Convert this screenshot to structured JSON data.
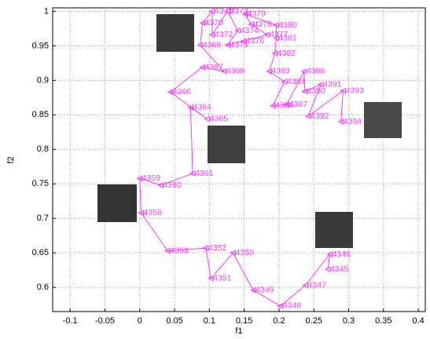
{
  "chart_data": {
    "type": "line",
    "x_label": "f1",
    "y_label": "f2",
    "color": "#ff33ff",
    "grid": true,
    "xlim": [
      -0.125,
      0.41
    ],
    "ylim": [
      0.565,
      1.005
    ],
    "xticks": [
      -0.1,
      -0.05,
      0,
      0.05,
      0.1,
      0.15,
      0.2,
      0.25,
      0.3,
      0.35,
      0.4
    ],
    "yticks": [
      0.6,
      0.65,
      0.7,
      0.75,
      0.8,
      0.85,
      0.9,
      0.95,
      1
    ],
    "point_labels": [
      "4345",
      "4346",
      "4347",
      "4348",
      "4349",
      "4350",
      "4351",
      "4352",
      "4353",
      "4358",
      "4359",
      "4360",
      "4361",
      "4364",
      "4365",
      "4366",
      "4367",
      "4368",
      "4369",
      "4370",
      "4371",
      "4372",
      "4373",
      "4374",
      "4375",
      "4376",
      "4377",
      "4378",
      "4379",
      "4380",
      "4381",
      "4382",
      "4383",
      "4384",
      "4386",
      "4387",
      "4388",
      "4390",
      "4391",
      "4392",
      "4393",
      "4394"
    ],
    "x": [
      0.27,
      0.273,
      0.238,
      0.202,
      0.163,
      0.134,
      0.102,
      0.095,
      0.04,
      0.002,
      0.0,
      0.03,
      0.076,
      0.073,
      0.097,
      0.044,
      0.09,
      0.121,
      0.087,
      0.09,
      0.104,
      0.104,
      0.126,
      0.141,
      0.126,
      0.149,
      0.183,
      0.16,
      0.151,
      0.196,
      0.196,
      0.194,
      0.186,
      0.208,
      0.191,
      0.211,
      0.236,
      0.237,
      0.26,
      0.242,
      0.292,
      0.289
    ],
    "y": [
      0.626,
      0.648,
      0.603,
      0.573,
      0.596,
      0.65,
      0.613,
      0.657,
      0.653,
      0.708,
      0.758,
      0.748,
      0.765,
      0.861,
      0.844,
      0.883,
      0.919,
      0.913,
      0.951,
      0.983,
      1.0,
      0.966,
      1.0,
      0.972,
      0.951,
      0.957,
      0.966,
      0.981,
      0.996,
      0.98,
      0.961,
      0.939,
      0.913,
      0.898,
      0.863,
      0.865,
      0.913,
      0.884,
      0.894,
      0.848,
      0.885,
      0.84
    ]
  }
}
